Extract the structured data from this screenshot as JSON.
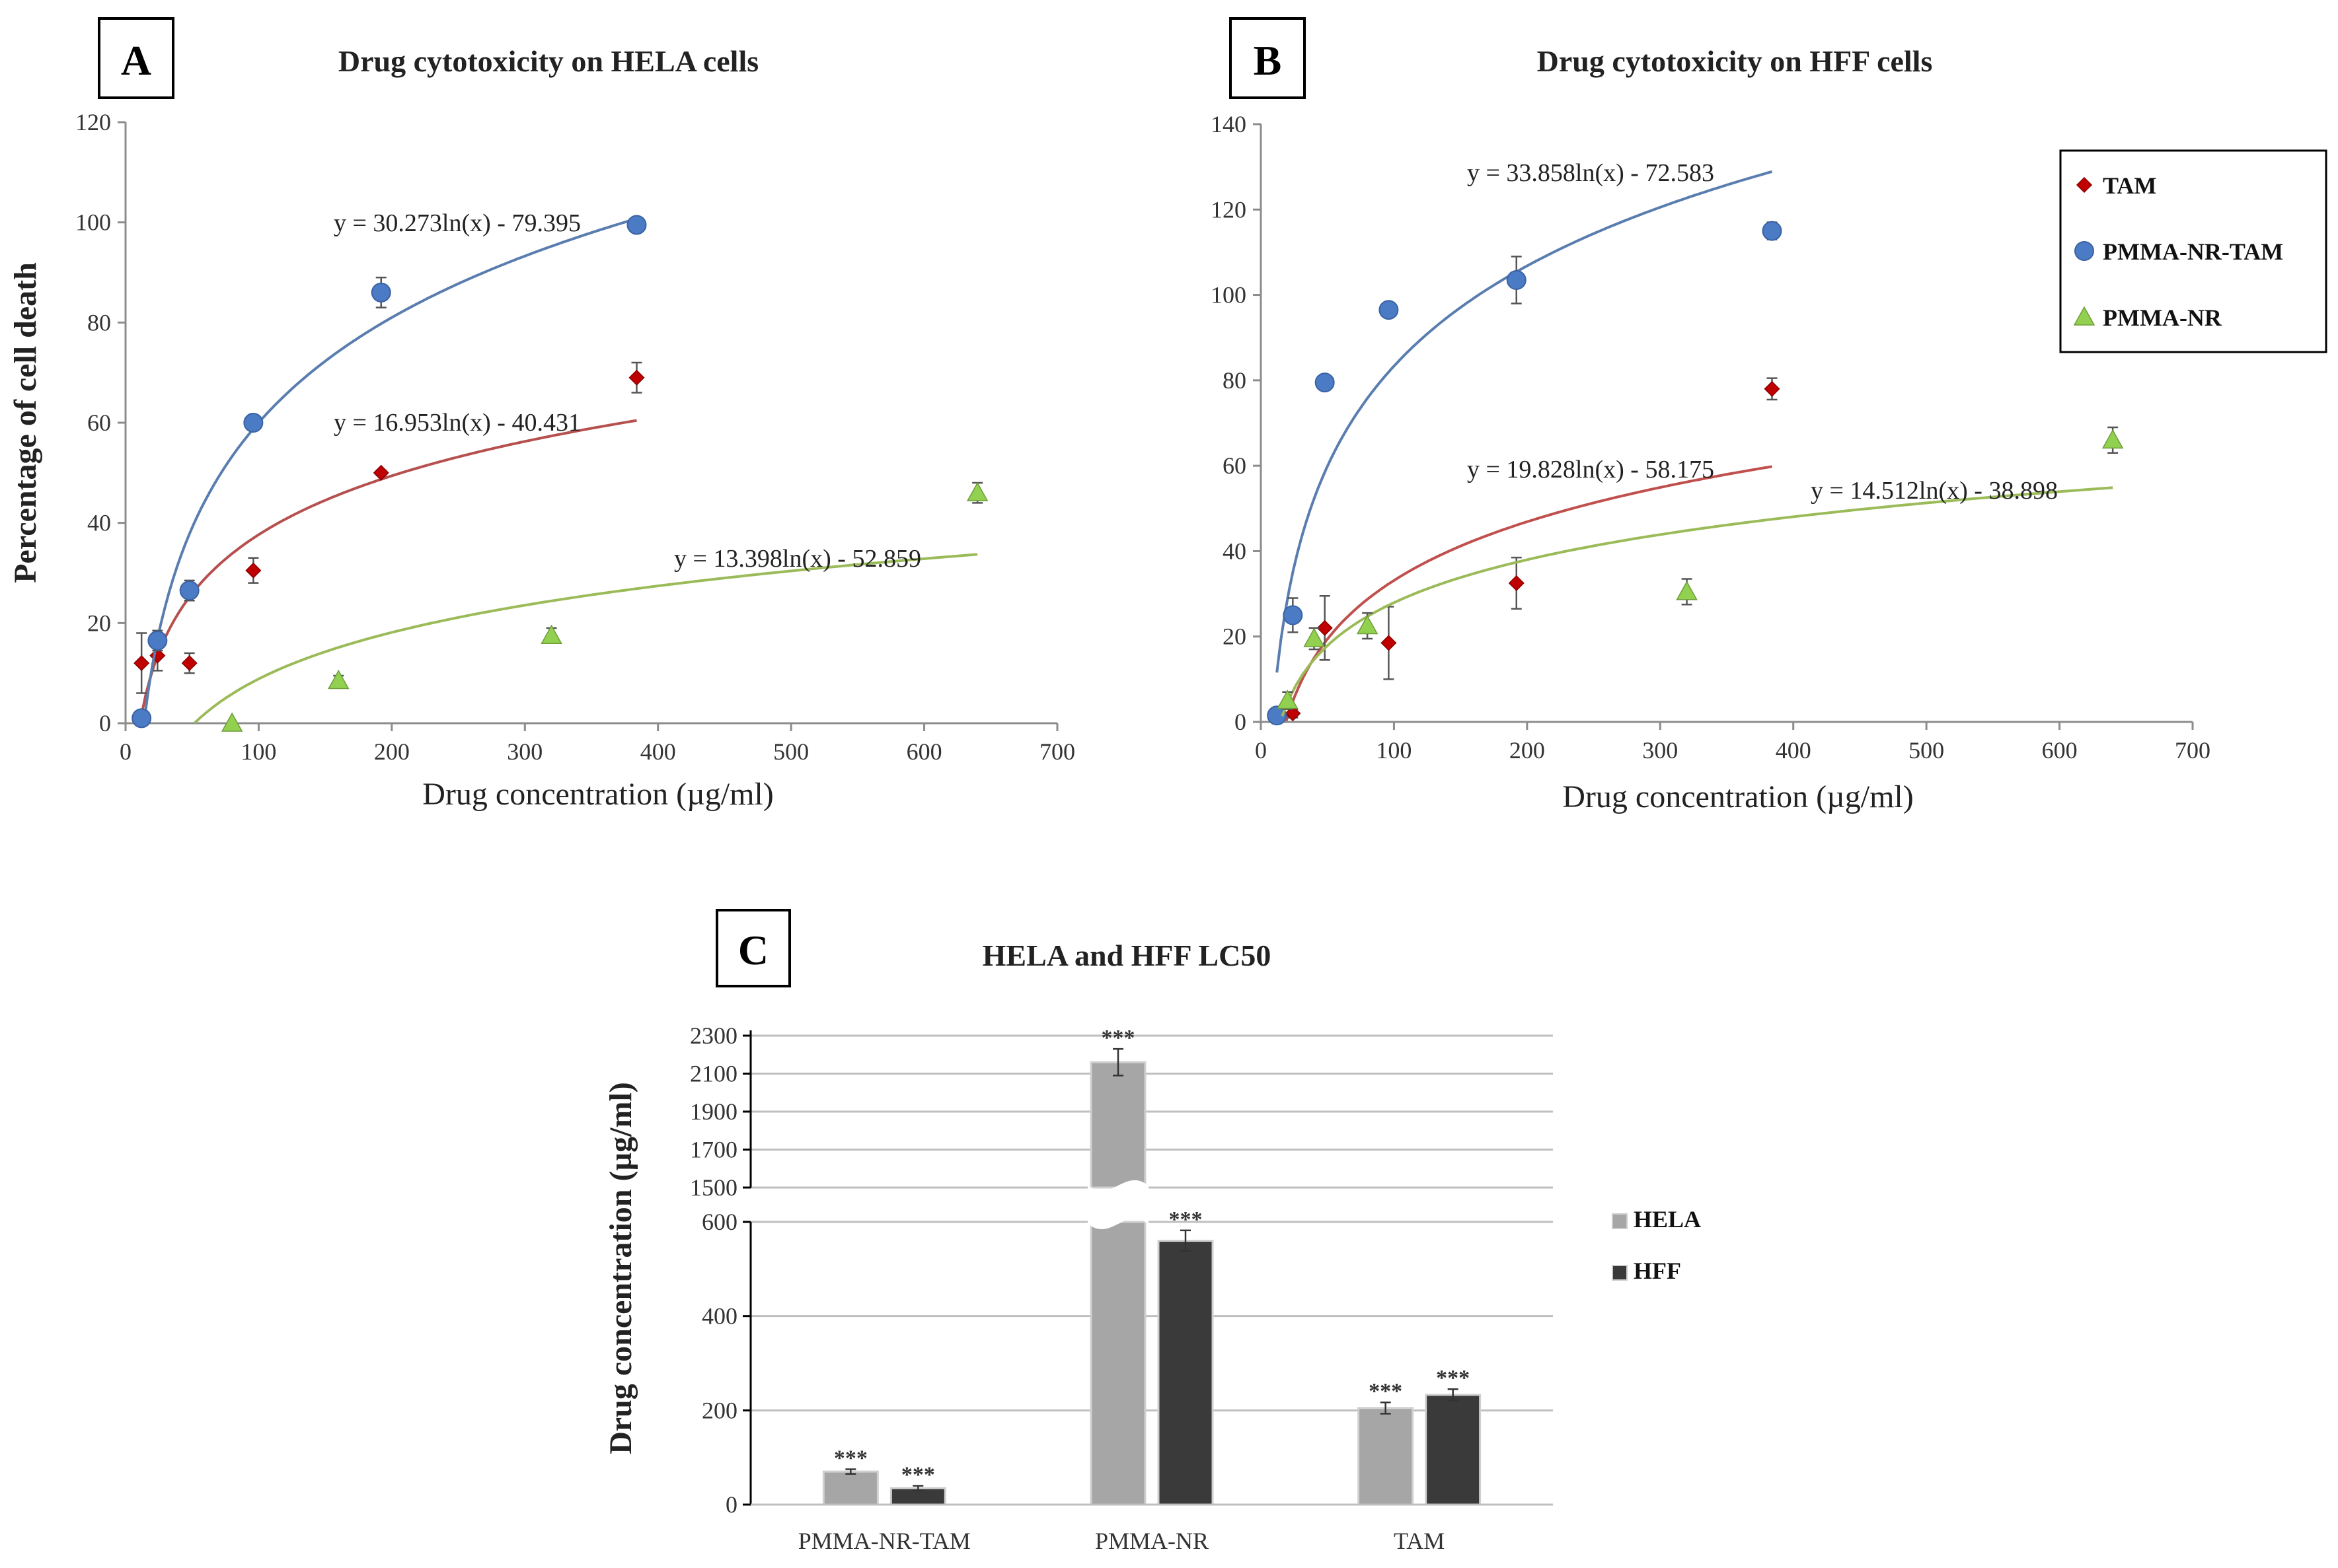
{
  "chart_data": [
    {
      "id": "A",
      "type": "scatter",
      "panel_label": "A",
      "title": "Drug cytotoxicity on HELA cells",
      "xlabel": "Drug concentration (µg/ml)",
      "ylabel": "Percentage of cell death",
      "xlim": [
        0,
        700
      ],
      "ylim": [
        0,
        120
      ],
      "xticks": [
        0,
        100,
        200,
        300,
        400,
        500,
        600,
        700
      ],
      "yticks": [
        0,
        20,
        40,
        60,
        80,
        100,
        120
      ],
      "series": [
        {
          "name": "TAM",
          "marker": "diamond",
          "color": "#c00000",
          "fit_color": "#b5504f",
          "points": [
            [
              12,
              12
            ],
            [
              24,
              13.5
            ],
            [
              48,
              12
            ],
            [
              96,
              30.5
            ],
            [
              192,
              50
            ],
            [
              384,
              69
            ]
          ],
          "errors": [
            6,
            3,
            2,
            2.5,
            0.5,
            3
          ],
          "fit": {
            "a": 16.953,
            "b": -40.431,
            "x_range": [
              12,
              384
            ],
            "equation": "y = 16.953ln(x) - 40.431"
          }
        },
        {
          "name": "PMMA-NR-TAM",
          "marker": "circle",
          "color": "#4a7bc4",
          "fit_color": "#5a7db0",
          "points": [
            [
              12,
              1
            ],
            [
              24,
              16.5
            ],
            [
              48,
              26.5
            ],
            [
              96,
              60
            ],
            [
              192,
              86
            ],
            [
              384,
              99.5
            ]
          ],
          "errors": [
            0.5,
            2,
            2,
            1,
            3,
            0.5
          ],
          "fit": {
            "a": 30.273,
            "b": -79.395,
            "x_range": [
              14,
              384
            ],
            "equation": "y = 30.273ln(x) - 79.395"
          }
        },
        {
          "name": "PMMA-NR",
          "marker": "triangle",
          "color": "#92d050",
          "fit_color": "#9bbb59",
          "points": [
            [
              80,
              0
            ],
            [
              160,
              8.5
            ],
            [
              320,
              17.5
            ],
            [
              640,
              46
            ]
          ],
          "errors": [
            0,
            1,
            1.5,
            2
          ],
          "fit": {
            "a": 13.398,
            "b": -52.859,
            "x_range": [
              52,
              640
            ],
            "equation": "y = 13.398ln(x) - 52.859"
          }
        }
      ]
    },
    {
      "id": "B",
      "type": "scatter",
      "panel_label": "B",
      "title": "Drug cytotoxicity on HFF cells",
      "xlabel": "Drug concentration (µg/ml)",
      "ylabel": "",
      "xlim": [
        0,
        700
      ],
      "ylim": [
        0,
        140
      ],
      "xticks": [
        0,
        100,
        200,
        300,
        400,
        500,
        600,
        700
      ],
      "yticks": [
        0,
        20,
        40,
        60,
        80,
        100,
        120,
        140
      ],
      "legend": {
        "placement": "top-right",
        "entries": [
          "TAM",
          "PMMA-NR-TAM",
          "PMMA-NR"
        ]
      },
      "series": [
        {
          "name": "TAM",
          "marker": "diamond",
          "color": "#c00000",
          "fit_color": "#c0504d",
          "points": [
            [
              24,
              2
            ],
            [
              48,
              22
            ],
            [
              96,
              18.5
            ],
            [
              192,
              32.5
            ],
            [
              384,
              78
            ]
          ],
          "errors": [
            1,
            7.5,
            8.5,
            6,
            2.5
          ],
          "fit": {
            "a": 19.828,
            "b": -58.175,
            "x_range": [
              19,
              384
            ],
            "equation": "y = 19.828ln(x) - 58.175"
          }
        },
        {
          "name": "PMMA-NR-TAM",
          "marker": "circle",
          "color": "#4a7bc4",
          "fit_color": "#5a7db0",
          "points": [
            [
              12,
              1.5
            ],
            [
              24,
              25
            ],
            [
              48,
              79.5
            ],
            [
              96,
              96.5
            ],
            [
              192,
              103.5
            ],
            [
              384,
              115
            ]
          ],
          "errors": [
            0.5,
            4,
            0.5,
            0.5,
            5.5,
            2
          ],
          "fit": {
            "a": 33.858,
            "b": -72.583,
            "x_range": [
              12,
              384
            ],
            "equation": "y = 33.858ln(x) - 72.583"
          }
        },
        {
          "name": "PMMA-NR",
          "marker": "triangle",
          "color": "#92d050",
          "fit_color": "#9bbb59",
          "points": [
            [
              20,
              5
            ],
            [
              40,
              19.5
            ],
            [
              80,
              22.5
            ],
            [
              320,
              30.5
            ],
            [
              640,
              66
            ]
          ],
          "errors": [
            2,
            2.5,
            3,
            3,
            3
          ],
          "fit": {
            "a": 14.512,
            "b": -38.898,
            "x_range": [
              16,
              640
            ],
            "equation": "y = 14.512ln(x) - 38.898"
          }
        }
      ]
    },
    {
      "id": "C",
      "type": "bar",
      "panel_label": "C",
      "title": "HELA and HFF LC50",
      "xlabel": "",
      "ylabel": "Drug concentration (µg/ml)",
      "categories": [
        "PMMA-NR-TAM",
        "PMMA-NR",
        "TAM"
      ],
      "lower_axis": {
        "ylim": [
          0,
          600
        ],
        "yticks": [
          0,
          200,
          400,
          600
        ]
      },
      "upper_axis": {
        "ylim": [
          1500,
          2300
        ],
        "yticks": [
          1500,
          1700,
          1900,
          2100,
          2300
        ]
      },
      "legend": {
        "placement": "right",
        "entries": [
          "HELA",
          "HFF"
        ]
      },
      "series": [
        {
          "name": "HELA",
          "color": "#a6a6a6",
          "values": [
            70,
            2160,
            205
          ],
          "errors": [
            5,
            70,
            12
          ],
          "annotation": [
            "***",
            "***",
            "***"
          ]
        },
        {
          "name": "HFF",
          "color": "#3a3a3a",
          "values": [
            35,
            560,
            233
          ],
          "errors": [
            5,
            22,
            12
          ],
          "annotation": [
            "***",
            "***",
            "***"
          ]
        }
      ]
    }
  ]
}
